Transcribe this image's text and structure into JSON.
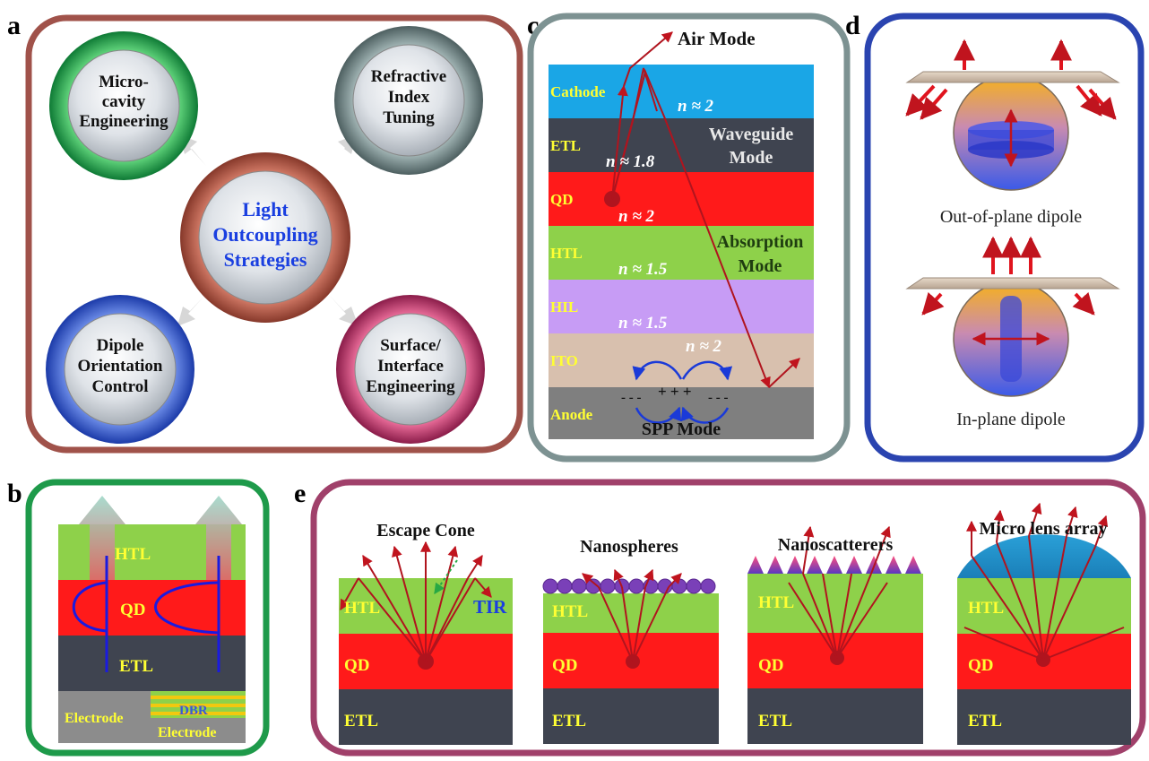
{
  "panel_labels": {
    "a": "a",
    "b": "b",
    "c": "c",
    "d": "d",
    "e": "e"
  },
  "panel_a": {
    "center": {
      "line1": "Light",
      "line2": "Outcoupling",
      "line3": "Strategies"
    },
    "microcavity": {
      "line1": "Micro-",
      "line2": "cavity",
      "line3": "Engineering"
    },
    "refractive": {
      "line1": "Refractive",
      "line2": "Index",
      "line3": "Tuning"
    },
    "dipole": {
      "line1": "Dipole",
      "line2": "Orientation",
      "line3": "Control"
    },
    "surface": {
      "line1": "Surface/",
      "line2": "Interface",
      "line3": "Engineering"
    }
  },
  "panel_b": {
    "htl": "HTL",
    "qd": "QD",
    "etl": "ETL",
    "electrode_left": "Electrode",
    "dbr": "DBR",
    "electrode_right": "Electrode"
  },
  "panel_c": {
    "air_mode": "Air Mode",
    "layers": {
      "cathode": "Cathode",
      "etl": "ETL",
      "qd": "QD",
      "htl": "HTL",
      "hil": "HIL",
      "ito": "ITO",
      "anode": "Anode"
    },
    "indices": {
      "cathode": "n ≈ 2",
      "etl": "n ≈ 1.8",
      "qd": "n ≈ 2",
      "htl": "n ≈ 1.5",
      "hil": "n ≈ 1.5",
      "ito": "n ≈ 2"
    },
    "waveguide_line1": "Waveguide",
    "waveguide_line2": "Mode",
    "absorption_line1": "Absorption",
    "absorption_line2": "Mode",
    "spp_mode": "SPP Mode",
    "charges_left": "- - -",
    "charges_mid": "+ + +",
    "charges_right": "- - -"
  },
  "panel_d": {
    "out_of_plane": "Out-of-plane dipole",
    "in_plane": "In-plane dipole"
  },
  "panel_e": {
    "escape_cone": "Escape Cone",
    "tir": "TIR",
    "nanospheres": "Nanospheres",
    "nanoscatterers": "Nanoscatterers",
    "micro_lens": "Micro lens array",
    "htl": "HTL",
    "qd": "QD",
    "etl": "ETL"
  },
  "colors": {
    "panel_a_border": "#a0524a",
    "panel_b_border": "#1e9a4a",
    "panel_c_border": "#7d9292",
    "panel_d_border": "#2a44b0",
    "panel_e_border": "#a0406a",
    "htl": "#8ed14a",
    "qd": "#ff1a1a",
    "etl": "#3f4450",
    "cathode": "#1aa6e6",
    "hil": "#c79cf5",
    "ito": "#d8c0ae",
    "anode": "#7f7f7f",
    "arrow": "#c0141e",
    "label_yellow": "#ffff33"
  }
}
